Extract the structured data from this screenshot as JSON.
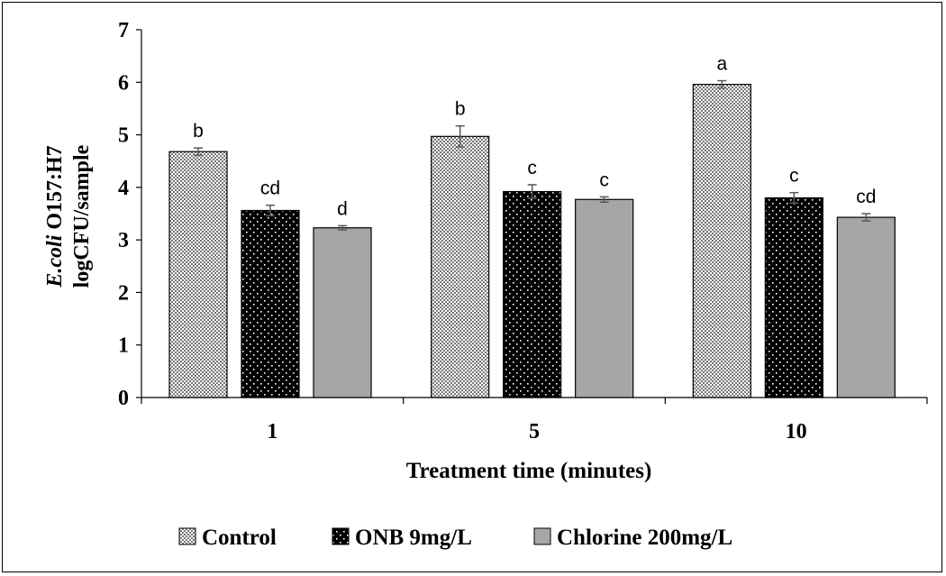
{
  "chart_data": {
    "type": "bar",
    "title": "",
    "xlabel": "Treatment time (minutes)",
    "ylabel_italic": "E.coli",
    "ylabel_rest": " O157:H7",
    "ylabel_line2": "logCFU/sample",
    "ylim": [
      0,
      7
    ],
    "yticks": [
      "0",
      "1",
      "2",
      "3",
      "4",
      "5",
      "6",
      "7"
    ],
    "categories": [
      "1",
      "5",
      "10"
    ],
    "legend_position": "bottom",
    "series": [
      {
        "name": "Control",
        "pattern": "checker",
        "values": [
          4.68,
          4.97,
          5.96
        ],
        "errors": [
          0.07,
          0.2,
          0.07
        ],
        "labels": [
          "b",
          "b",
          "a"
        ]
      },
      {
        "name": "ONB 9mg/L",
        "pattern": "black-dots",
        "values": [
          3.56,
          3.92,
          3.8
        ],
        "errors": [
          0.1,
          0.13,
          0.1
        ],
        "labels": [
          "cd",
          "c",
          "c"
        ]
      },
      {
        "name": "Chlorine 200mg/L",
        "pattern": "gray",
        "values": [
          3.23,
          3.77,
          3.43
        ],
        "errors": [
          0.04,
          0.05,
          0.07
        ],
        "labels": [
          "d",
          "c",
          "cd"
        ]
      }
    ],
    "colors": {
      "gray_fill": "#a6a6a6",
      "error_bar": "#595959"
    }
  }
}
